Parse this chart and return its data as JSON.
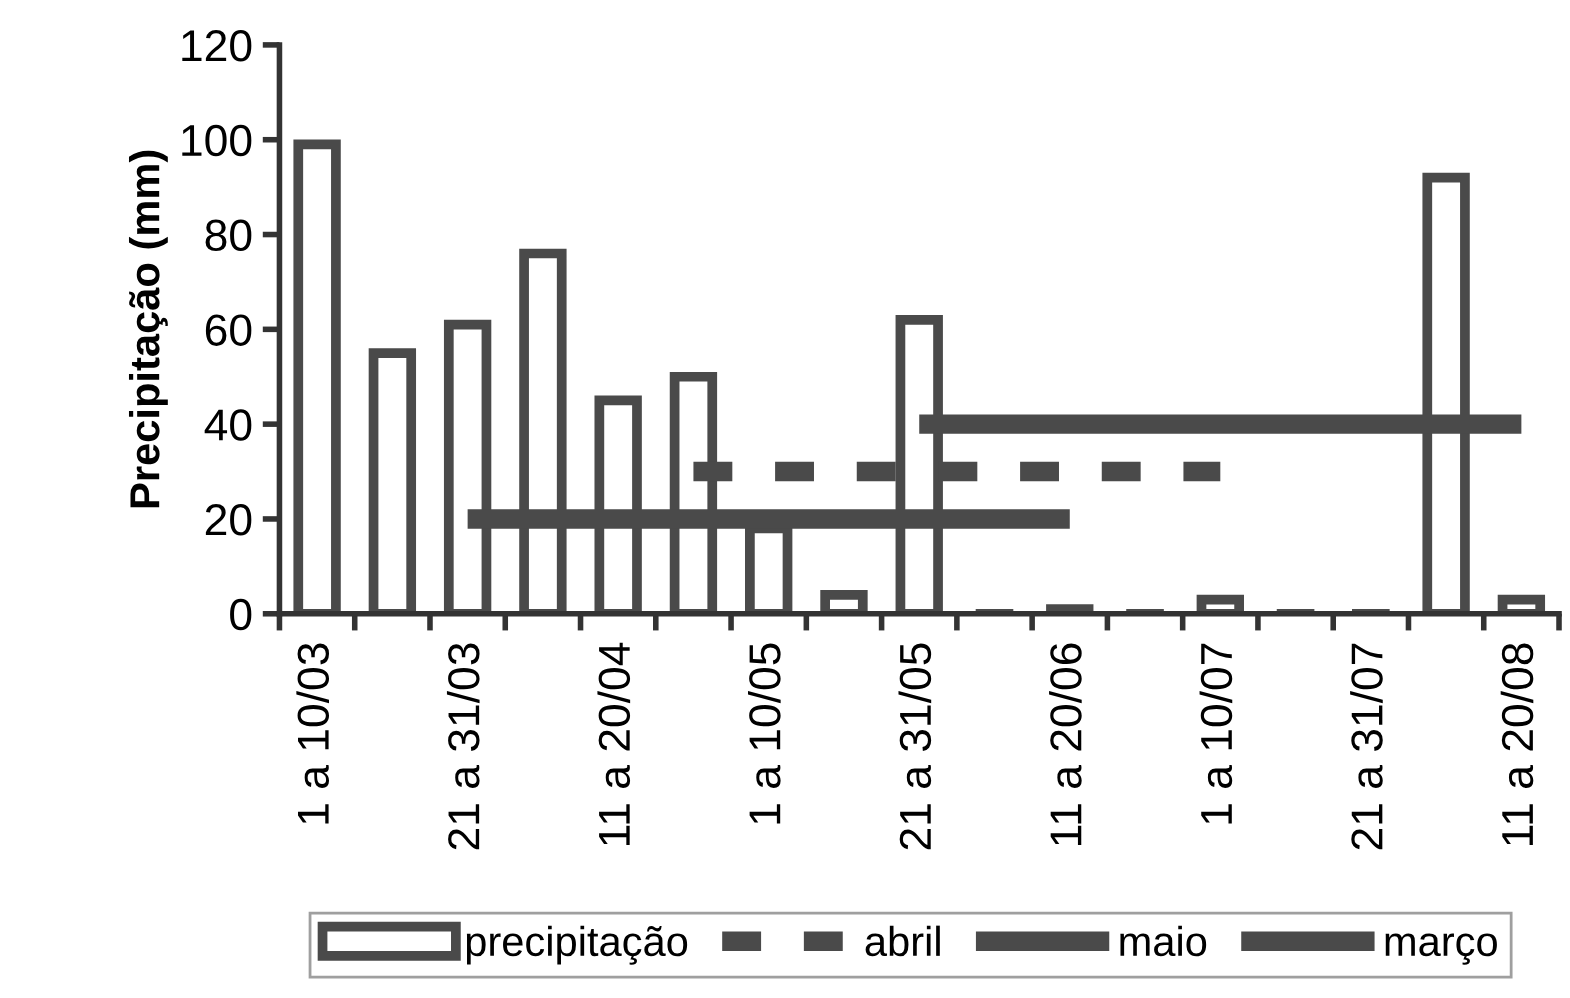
{
  "chart_data": {
    "type": "bar",
    "ylabel": "Precipitação (mm)",
    "categories": [
      "1 a 10/03",
      null,
      "21 a 31/03",
      null,
      "11 a 20/04",
      null,
      "1 a 10/05",
      null,
      "21 a 31/05",
      null,
      "11 a 20/06",
      null,
      "1 a 10/07",
      null,
      "21 a 31/07",
      null,
      "11 a 20/08"
    ],
    "series": [
      {
        "name": "precipitação",
        "color": "#4a4a4a",
        "values": [
          99,
          55,
          61,
          76,
          45,
          50,
          18,
          4,
          62,
          0,
          1,
          0,
          3,
          0,
          0,
          92,
          3
        ]
      },
      {
        "name": "abril",
        "type": "line",
        "line_style": "dashed",
        "color": "#4a4a4a",
        "values": [
          null,
          null,
          null,
          null,
          null,
          30,
          30,
          30,
          30,
          30,
          30,
          30,
          30,
          null,
          null,
          null,
          null
        ]
      },
      {
        "name": "maio",
        "type": "line",
        "line_style": "solid",
        "color": "#4a4a4a",
        "values": [
          null,
          null,
          null,
          null,
          null,
          null,
          null,
          null,
          40,
          40,
          40,
          40,
          40,
          40,
          40,
          40,
          40
        ]
      },
      {
        "name": "março",
        "type": "line",
        "line_style": "solid",
        "color": "#4a4a4a",
        "values": [
          null,
          null,
          20,
          20,
          20,
          20,
          20,
          20,
          20,
          20,
          20,
          null,
          null,
          null,
          null,
          null,
          null
        ]
      }
    ],
    "ylim": [
      0,
      120
    ],
    "yticks": [
      0,
      20,
      40,
      60,
      80,
      100,
      120
    ],
    "legend": "bottom",
    "grid": false
  }
}
